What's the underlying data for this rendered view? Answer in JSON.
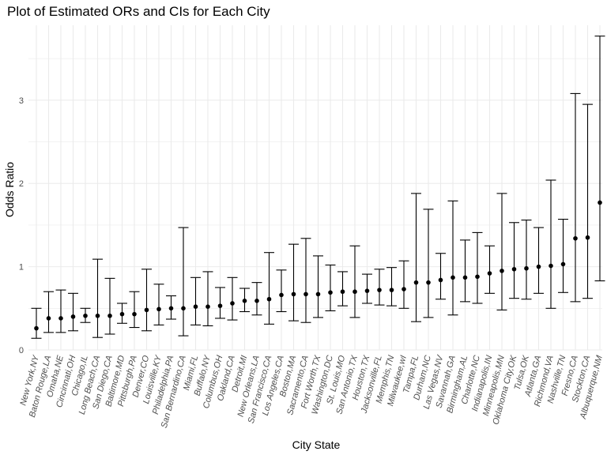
{
  "chart_data": {
    "type": "scatter",
    "title": "Plot of Estimated ORs and CIs for Each City",
    "xlabel": "City State",
    "ylabel": "Odds Ratio",
    "ylim": [
      0,
      3.9
    ],
    "yticks": [
      "0",
      "1",
      "2",
      "3"
    ],
    "grid": true,
    "legend": "none",
    "colors": {
      "point": "#000000",
      "errorbar": "#000000",
      "grid": "#ebebeb"
    },
    "categories": [
      "New York,NY",
      "Baton Rouge,LA",
      "Omaha,NE",
      "Cincinnati,OH",
      "Chicago,IL",
      "Long Beach,CA",
      "San Diego,CA",
      "Baltimore,MD",
      "Pittsburgh,PA",
      "Denver,CO",
      "Louisville,KY",
      "Philadelphia,PA",
      "San Bernardino,CA",
      "Miami,FL",
      "Buffalo,NY",
      "Columbus,OH",
      "Oakland,CA",
      "Detroit,MI",
      "New Orleans,LA",
      "San Francisco,CA",
      "Los Angeles,CA",
      "Boston,MA",
      "Sacramento,CA",
      "Fort Worth,TX",
      "Washington,DC",
      "St. Louis,MO",
      "San Antonio,TX",
      "Houston,TX",
      "Jacksonville,FL",
      "Memphis,TN",
      "Milwaukee,wI",
      "Tampa,FL",
      "Durham,NC",
      "Las Vegas,NV",
      "Savannah,GA",
      "Birmingham,AL",
      "Charlotte,NC",
      "Indianapolis,IN",
      "Minneapolis,MN",
      "Oklahoma City,OK",
      "Tulsa,OK",
      "Atlanta,GA",
      "Richmond,VA",
      "Nashville,TN",
      "Fresno,CA",
      "Stockton,CA",
      "Albuquerque,NM"
    ],
    "estimate": [
      0.26,
      0.38,
      0.38,
      0.4,
      0.41,
      0.41,
      0.41,
      0.43,
      0.43,
      0.48,
      0.49,
      0.5,
      0.5,
      0.52,
      0.52,
      0.53,
      0.56,
      0.59,
      0.59,
      0.61,
      0.66,
      0.67,
      0.67,
      0.67,
      0.69,
      0.7,
      0.7,
      0.71,
      0.72,
      0.72,
      0.73,
      0.81,
      0.81,
      0.84,
      0.87,
      0.87,
      0.88,
      0.92,
      0.95,
      0.97,
      0.98,
      1.0,
      1.01,
      1.03,
      1.34,
      1.35,
      1.77
    ],
    "ci_low": [
      0.14,
      0.21,
      0.21,
      0.23,
      0.33,
      0.15,
      0.19,
      0.32,
      0.27,
      0.23,
      0.3,
      0.37,
      0.17,
      0.3,
      0.29,
      0.38,
      0.36,
      0.46,
      0.42,
      0.31,
      0.46,
      0.35,
      0.33,
      0.39,
      0.47,
      0.53,
      0.39,
      0.56,
      0.54,
      0.53,
      0.5,
      0.34,
      0.39,
      0.61,
      0.42,
      0.58,
      0.56,
      0.68,
      0.48,
      0.62,
      0.61,
      0.68,
      0.5,
      0.69,
      0.58,
      0.62,
      0.83
    ],
    "ci_high": [
      0.5,
      0.7,
      0.72,
      0.68,
      0.5,
      1.09,
      0.86,
      0.56,
      0.7,
      0.97,
      0.79,
      0.65,
      1.47,
      0.87,
      0.94,
      0.75,
      0.87,
      0.74,
      0.81,
      1.17,
      0.96,
      1.27,
      1.34,
      1.13,
      1.02,
      0.94,
      1.25,
      0.91,
      0.97,
      0.99,
      1.07,
      1.88,
      1.69,
      1.16,
      1.79,
      1.32,
      1.41,
      1.25,
      1.88,
      1.53,
      1.56,
      1.47,
      2.04,
      1.57,
      3.08,
      2.95,
      3.77
    ]
  }
}
